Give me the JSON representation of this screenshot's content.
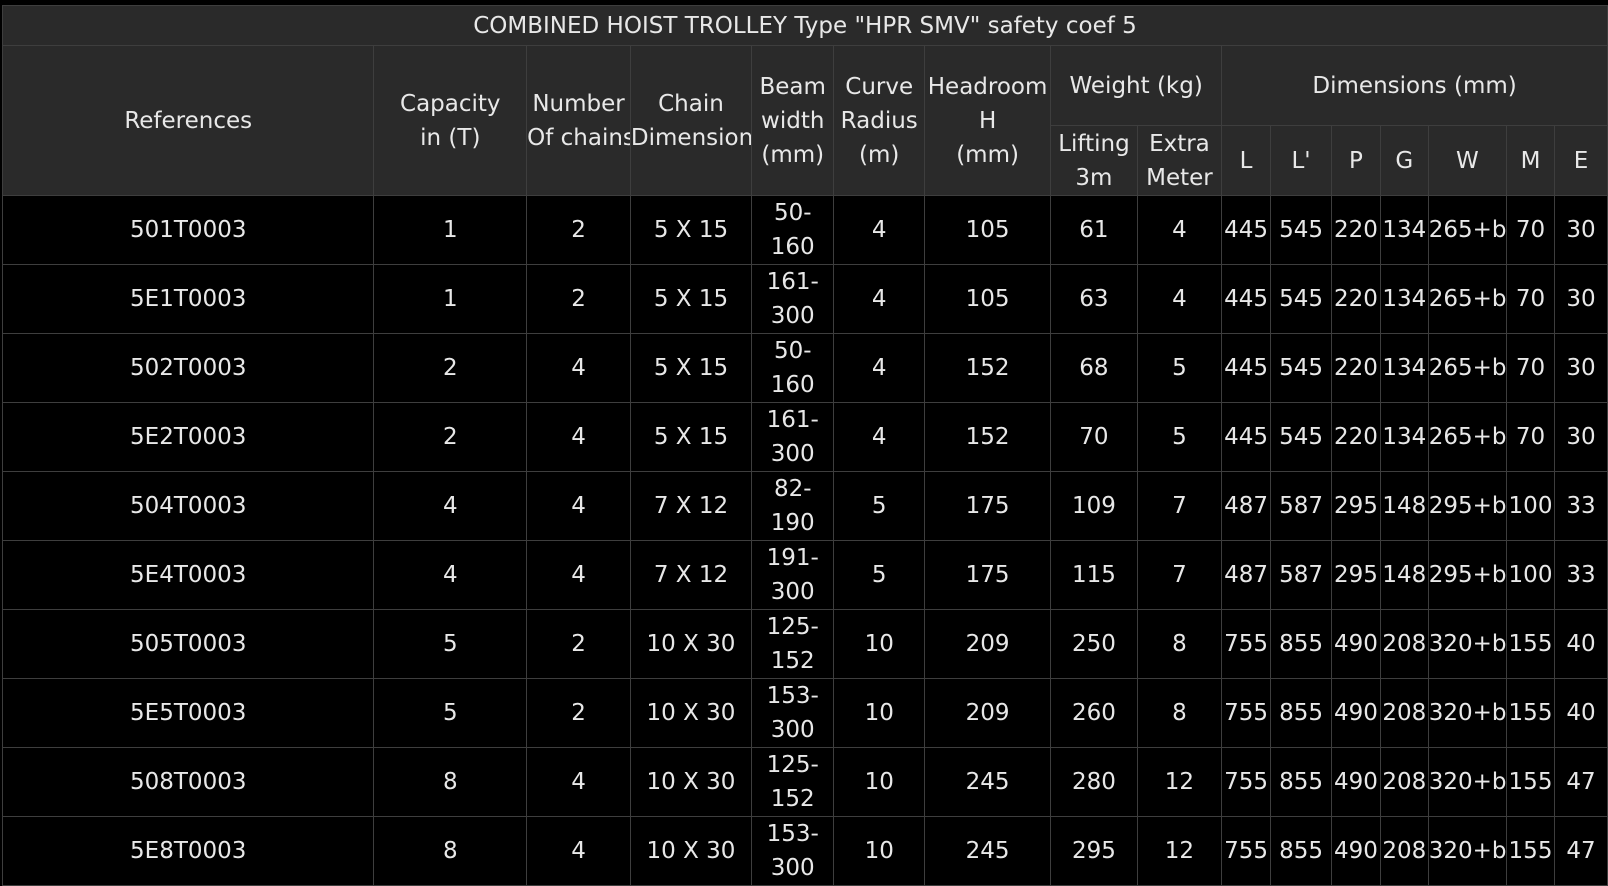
{
  "title": "COMBINED HOIST TROLLEY Type \"HPR SMV\" safety coef 5",
  "headers": {
    "references": "References",
    "capacity_line1": "Capacity",
    "capacity_line2": "in (T)",
    "chains_line1": "Number",
    "chains_line2": "Of chains",
    "chain_dim_line1": "Chain",
    "chain_dim_line2": "Dimension",
    "beam_line1": "Beam",
    "beam_line2": "width",
    "beam_line3": "(mm)",
    "curve_line1": "Curve",
    "curve_line2": "Radius",
    "curve_line3": "(m)",
    "headroom_line1": "Headroom",
    "headroom_line2": "H",
    "headroom_line3": "(mm)",
    "weight_group": "Weight (kg)",
    "weight_lifting_line1": "Lifting",
    "weight_lifting_line2": "3m",
    "weight_extra_line1": "Extra",
    "weight_extra_line2": "Meter",
    "dimensions_group": "Dimensions (mm)",
    "dim_L": "L",
    "dim_L2": "L'",
    "dim_P": "P",
    "dim_G": "G",
    "dim_W": "W",
    "dim_M": "M",
    "dim_E": "E"
  },
  "rows": [
    {
      "ref": "501T0003",
      "capacity": "1",
      "chains": "2",
      "chain_dim": "5 X 15",
      "beam_1": "50-160",
      "beam_2": "",
      "curve": "4",
      "headroom": "105",
      "lifting": "61",
      "extra": "4",
      "L": "445",
      "L2": "545",
      "P": "220",
      "G": "134",
      "W": "265+b",
      "M": "70",
      "E": "30"
    },
    {
      "ref": "5E1T0003",
      "capacity": "1",
      "chains": "2",
      "chain_dim": "5 X 15",
      "beam_1": "161-",
      "beam_2": "300",
      "curve": "4",
      "headroom": "105",
      "lifting": "63",
      "extra": "4",
      "L": "445",
      "L2": "545",
      "P": "220",
      "G": "134",
      "W": "265+b",
      "M": "70",
      "E": "30"
    },
    {
      "ref": "502T0003",
      "capacity": "2",
      "chains": "4",
      "chain_dim": "5 X 15",
      "beam_1": "50-160",
      "beam_2": "",
      "curve": "4",
      "headroom": "152",
      "lifting": "68",
      "extra": "5",
      "L": "445",
      "L2": "545",
      "P": "220",
      "G": "134",
      "W": "265+b",
      "M": "70",
      "E": "30"
    },
    {
      "ref": "5E2T0003",
      "capacity": "2",
      "chains": "4",
      "chain_dim": "5 X 15",
      "beam_1": "161-",
      "beam_2": "300",
      "curve": "4",
      "headroom": "152",
      "lifting": "70",
      "extra": "5",
      "L": "445",
      "L2": "545",
      "P": "220",
      "G": "134",
      "W": "265+b",
      "M": "70",
      "E": "30"
    },
    {
      "ref": "504T0003",
      "capacity": "4",
      "chains": "4",
      "chain_dim": "7 X 12",
      "beam_1": "82-190",
      "beam_2": "",
      "curve": "5",
      "headroom": "175",
      "lifting": "109",
      "extra": "7",
      "L": "487",
      "L2": "587",
      "P": "295",
      "G": "148",
      "W": "295+b",
      "M": "100",
      "E": "33"
    },
    {
      "ref": "5E4T0003",
      "capacity": "4",
      "chains": "4",
      "chain_dim": "7 X 12",
      "beam_1": "191-",
      "beam_2": "300",
      "curve": "5",
      "headroom": "175",
      "lifting": "115",
      "extra": "7",
      "L": "487",
      "L2": "587",
      "P": "295",
      "G": "148",
      "W": "295+b",
      "M": "100",
      "E": "33"
    },
    {
      "ref": "505T0003",
      "capacity": "5",
      "chains": "2",
      "chain_dim": "10 X 30",
      "beam_1": "125-",
      "beam_2": "152",
      "curve": "10",
      "headroom": "209",
      "lifting": "250",
      "extra": "8",
      "L": "755",
      "L2": "855",
      "P": "490",
      "G": "208",
      "W": "320+b",
      "M": "155",
      "E": "40"
    },
    {
      "ref": "5E5T0003",
      "capacity": "5",
      "chains": "2",
      "chain_dim": "10 X 30",
      "beam_1": "153-",
      "beam_2": "300",
      "curve": "10",
      "headroom": "209",
      "lifting": "260",
      "extra": "8",
      "L": "755",
      "L2": "855",
      "P": "490",
      "G": "208",
      "W": "320+b",
      "M": "155",
      "E": "40"
    },
    {
      "ref": "508T0003",
      "capacity": "8",
      "chains": "4",
      "chain_dim": "10 X 30",
      "beam_1": "125-",
      "beam_2": "152",
      "curve": "10",
      "headroom": "245",
      "lifting": "280",
      "extra": "12",
      "L": "755",
      "L2": "855",
      "P": "490",
      "G": "208",
      "W": "320+b",
      "M": "155",
      "E": "47"
    },
    {
      "ref": "5E8T0003",
      "capacity": "8",
      "chains": "4",
      "chain_dim": "10 X 30",
      "beam_1": "153-",
      "beam_2": "300",
      "curve": "10",
      "headroom": "245",
      "lifting": "295",
      "extra": "12",
      "L": "755",
      "L2": "855",
      "P": "490",
      "G": "208",
      "W": "320+b",
      "M": "155",
      "E": "47"
    }
  ]
}
